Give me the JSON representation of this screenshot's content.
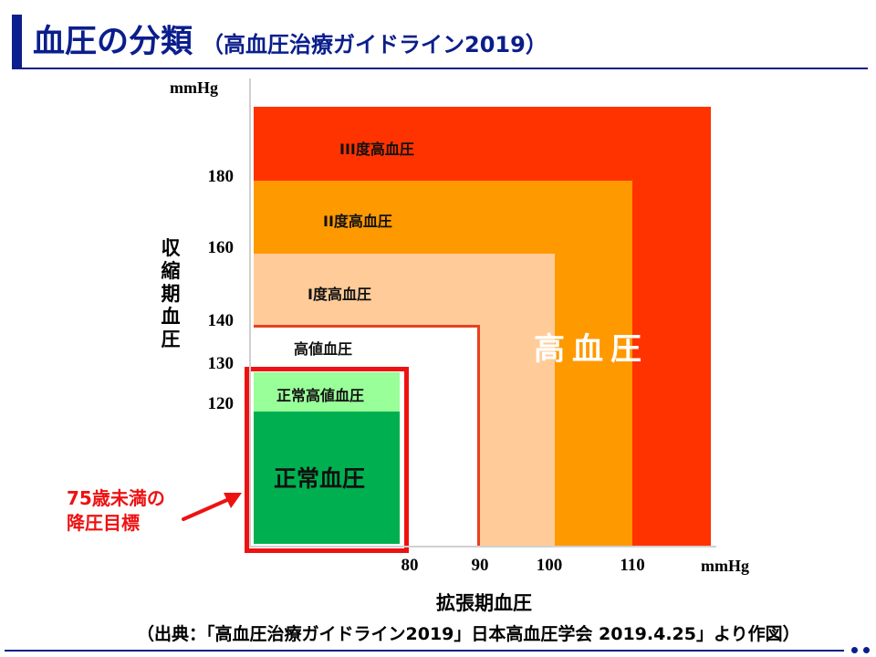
{
  "title": {
    "main": "血圧の分類",
    "sub": "（高血圧治療ガイドライン2019）"
  },
  "axes": {
    "y_unit": "mmHg",
    "x_unit": "mmHg",
    "y_label": "収縮期血圧",
    "x_label": "拡張期血圧",
    "y_ticks": [
      "180",
      "160",
      "140",
      "130",
      "120"
    ],
    "x_ticks": [
      "80",
      "90",
      "100",
      "110"
    ]
  },
  "zones": {
    "grade3": {
      "label": "III度高血圧",
      "color": "#ff3300"
    },
    "grade2": {
      "label": "II度高血圧",
      "color": "#ff9900"
    },
    "grade1": {
      "label": "I度高血圧",
      "color": "#ffcc99"
    },
    "elevated": {
      "label": "高値血圧",
      "color": "#ffffff",
      "border": "#e84020"
    },
    "high_normal": {
      "label": "正常高値血圧",
      "color": "#99ff99"
    },
    "normal": {
      "label": "正常血圧",
      "color": "#00b050"
    }
  },
  "hypertension_label": "高血圧",
  "annotation": {
    "line1": "75歳未満の",
    "line2": "降圧目標",
    "color": "#ee1111"
  },
  "source": "（出典：「高血圧治療ガイドライン2019」日本高血圧学会 2019.4.25」より作図）"
}
